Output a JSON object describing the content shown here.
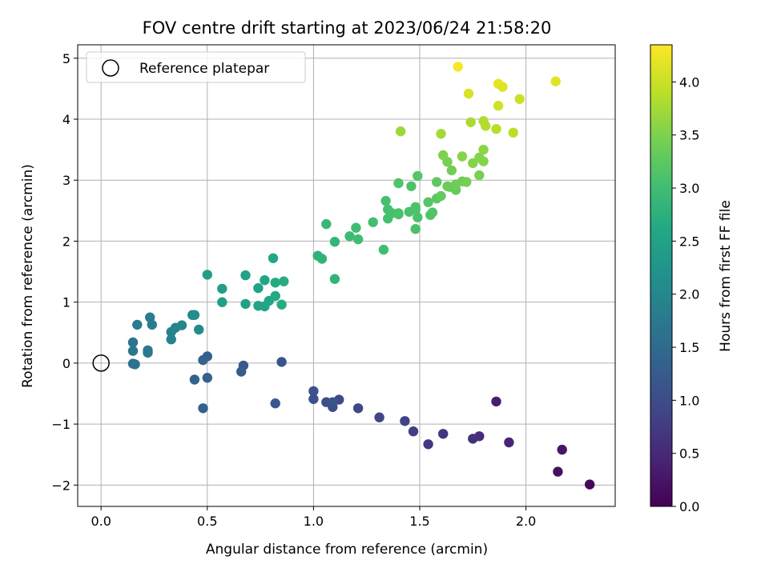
{
  "chart_data": {
    "type": "scatter",
    "title": "FOV centre drift starting at 2023/06/24 21:58:20",
    "xlabel": "Angular distance from reference (arcmin)",
    "ylabel": "Rotation from reference (arcmin)",
    "xlim": [
      -0.11,
      2.42
    ],
    "ylim": [
      -2.35,
      5.22
    ],
    "xticks": [
      0.0,
      0.5,
      1.0,
      1.5,
      2.0
    ],
    "xtick_labels": [
      "0.0",
      "0.5",
      "1.0",
      "1.5",
      "2.0"
    ],
    "yticks": [
      -2,
      -1,
      0,
      1,
      2,
      3,
      4,
      5
    ],
    "ytick_labels": [
      "−2",
      "−1",
      "0",
      "1",
      "2",
      "3",
      "4",
      "5"
    ],
    "grid": true,
    "legend": {
      "label": "Reference platepar",
      "position": "top-left"
    },
    "reference": {
      "x": 0.0,
      "y": 0.0
    },
    "colorbar": {
      "label": "Hours from first FF file",
      "range": [
        0.0,
        4.35
      ],
      "colormap": "viridis",
      "ticks": [
        0.0,
        0.5,
        1.0,
        1.5,
        2.0,
        2.5,
        3.0,
        3.5,
        4.0
      ],
      "tick_labels": [
        "0.0",
        "0.5",
        "1.0",
        "1.5",
        "2.0",
        "2.5",
        "3.0",
        "3.5",
        "4.0"
      ]
    },
    "series": [
      {
        "points": [
          [
            2.3,
            -1.99,
            0.1
          ],
          [
            2.15,
            -1.78,
            0.2
          ],
          [
            2.17,
            -1.42,
            0.25
          ],
          [
            1.86,
            -0.63,
            0.35
          ],
          [
            1.92,
            -1.3,
            0.45
          ],
          [
            1.78,
            -1.2,
            0.55
          ],
          [
            1.75,
            -1.24,
            0.6
          ],
          [
            1.61,
            -1.16,
            0.65
          ],
          [
            1.54,
            -1.33,
            0.72
          ],
          [
            1.47,
            -1.12,
            0.8
          ],
          [
            1.43,
            -0.95,
            0.85
          ],
          [
            1.31,
            -0.89,
            0.9
          ],
          [
            1.21,
            -0.74,
            0.95
          ],
          [
            1.12,
            -0.6,
            1.0
          ],
          [
            1.09,
            -0.72,
            1.02
          ],
          [
            1.06,
            -0.64,
            1.05
          ],
          [
            1.0,
            -0.59,
            1.08
          ],
          [
            1.0,
            -0.46,
            1.1
          ],
          [
            1.09,
            -0.64,
            1.12
          ],
          [
            0.85,
            0.02,
            1.15
          ],
          [
            0.82,
            -0.66,
            1.18
          ],
          [
            0.67,
            -0.04,
            1.22
          ],
          [
            0.66,
            -0.14,
            1.25
          ],
          [
            0.5,
            0.11,
            1.3
          ],
          [
            0.5,
            -0.24,
            1.32
          ],
          [
            0.48,
            0.05,
            1.35
          ],
          [
            0.48,
            -0.74,
            1.33
          ],
          [
            0.44,
            -0.27,
            1.38
          ],
          [
            0.15,
            -0.01,
            1.6
          ],
          [
            0.16,
            -0.02,
            1.62
          ],
          [
            0.15,
            0.34,
            1.65
          ],
          [
            0.15,
            0.2,
            1.68
          ],
          [
            0.22,
            0.21,
            1.72
          ],
          [
            0.22,
            0.17,
            1.75
          ],
          [
            0.17,
            0.63,
            1.8
          ],
          [
            0.23,
            0.75,
            1.82
          ],
          [
            0.24,
            0.63,
            1.85
          ],
          [
            0.33,
            0.39,
            1.9
          ],
          [
            0.33,
            0.51,
            1.92
          ],
          [
            0.35,
            0.58,
            1.95
          ],
          [
            0.38,
            0.62,
            2.0
          ],
          [
            0.43,
            0.79,
            2.05
          ],
          [
            0.44,
            0.79,
            2.08
          ],
          [
            0.46,
            0.55,
            2.1
          ],
          [
            0.5,
            1.45,
            2.4
          ],
          [
            0.57,
            1.22,
            2.42
          ],
          [
            0.57,
            1.0,
            2.44
          ],
          [
            0.68,
            0.97,
            2.46
          ],
          [
            0.68,
            1.44,
            2.48
          ],
          [
            0.74,
            1.23,
            2.5
          ],
          [
            0.74,
            0.94,
            2.52
          ],
          [
            0.77,
            0.93,
            2.54
          ],
          [
            0.77,
            1.36,
            2.56
          ],
          [
            0.79,
            1.02,
            2.58
          ],
          [
            0.81,
            1.72,
            2.6
          ],
          [
            0.82,
            1.1,
            2.62
          ],
          [
            0.82,
            1.32,
            2.64
          ],
          [
            0.85,
            0.96,
            2.66
          ],
          [
            0.86,
            1.34,
            2.68
          ],
          [
            1.02,
            1.76,
            2.78
          ],
          [
            1.04,
            1.71,
            2.8
          ],
          [
            1.06,
            2.28,
            2.9
          ],
          [
            1.1,
            1.99,
            2.85
          ],
          [
            1.1,
            1.38,
            2.82
          ],
          [
            1.17,
            2.08,
            2.95
          ],
          [
            1.2,
            2.22,
            2.98
          ],
          [
            1.21,
            2.03,
            3.0
          ],
          [
            1.28,
            2.31,
            3.02
          ],
          [
            1.33,
            1.86,
            3.0
          ],
          [
            1.34,
            2.66,
            3.05
          ],
          [
            1.35,
            2.52,
            3.05
          ],
          [
            1.35,
            2.37,
            3.06
          ],
          [
            1.37,
            2.46,
            3.07
          ],
          [
            1.4,
            2.46,
            3.08
          ],
          [
            1.4,
            2.95,
            3.15
          ],
          [
            1.4,
            2.44,
            3.08
          ],
          [
            1.45,
            2.48,
            3.1
          ],
          [
            1.46,
            2.9,
            3.12
          ],
          [
            1.48,
            2.52,
            3.12
          ],
          [
            1.48,
            2.2,
            3.1
          ],
          [
            1.48,
            2.56,
            3.12
          ],
          [
            1.49,
            3.07,
            3.18
          ],
          [
            1.49,
            2.39,
            3.1
          ],
          [
            1.54,
            2.64,
            3.2
          ],
          [
            1.55,
            2.43,
            3.15
          ],
          [
            1.56,
            2.47,
            3.15
          ],
          [
            1.58,
            2.7,
            3.22
          ],
          [
            1.58,
            2.97,
            3.25
          ],
          [
            1.6,
            2.74,
            3.3
          ],
          [
            1.63,
            2.9,
            3.35
          ],
          [
            1.63,
            3.3,
            3.45
          ],
          [
            1.64,
            2.89,
            3.35
          ],
          [
            1.65,
            3.16,
            3.4
          ],
          [
            1.67,
            2.84,
            3.3
          ],
          [
            1.67,
            2.93,
            3.38
          ],
          [
            1.7,
            2.98,
            3.4
          ],
          [
            1.72,
            2.97,
            3.42
          ],
          [
            1.61,
            3.41,
            3.5
          ],
          [
            1.7,
            3.39,
            3.55
          ],
          [
            1.75,
            3.28,
            3.55
          ],
          [
            1.78,
            3.08,
            3.45
          ],
          [
            1.78,
            3.37,
            3.55
          ],
          [
            1.8,
            3.31,
            3.55
          ],
          [
            1.8,
            3.5,
            3.6
          ],
          [
            1.41,
            3.8,
            3.7
          ],
          [
            1.6,
            3.76,
            3.75
          ],
          [
            1.74,
            3.95,
            3.8
          ],
          [
            1.8,
            3.97,
            3.82
          ],
          [
            1.81,
            3.89,
            3.85
          ],
          [
            1.86,
            3.84,
            3.88
          ],
          [
            1.94,
            3.78,
            3.9
          ],
          [
            1.73,
            4.42,
            4.1
          ],
          [
            1.87,
            4.22,
            4.05
          ],
          [
            1.97,
            4.33,
            4.0
          ],
          [
            1.87,
            4.58,
            4.2
          ],
          [
            1.89,
            4.53,
            4.15
          ],
          [
            2.14,
            4.62,
            4.15
          ],
          [
            1.68,
            4.86,
            4.3
          ]
        ]
      }
    ]
  }
}
